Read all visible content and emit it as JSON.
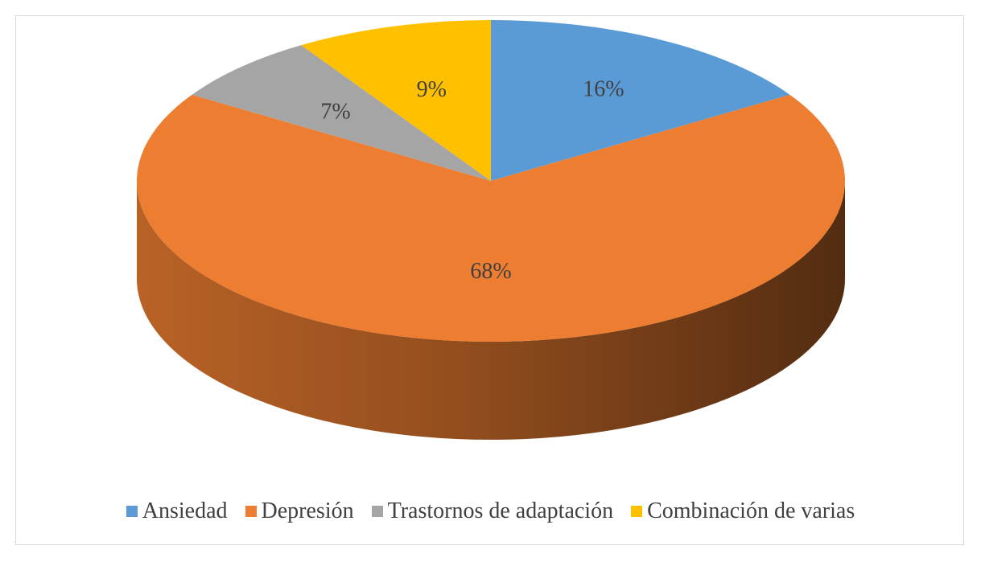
{
  "chart_data": {
    "type": "pie",
    "variant": "3d",
    "categories": [
      "Ansiedad",
      "Depresión",
      "Trastornos de adaptación",
      "Combinación de varias"
    ],
    "values": [
      16,
      68,
      7,
      9
    ],
    "labels": [
      "16%",
      "68%",
      "7%",
      "9%"
    ],
    "colors": [
      "#5b9bd5",
      "#ed7d31",
      "#a5a5a5",
      "#ffc000"
    ],
    "legend_position": "bottom"
  }
}
